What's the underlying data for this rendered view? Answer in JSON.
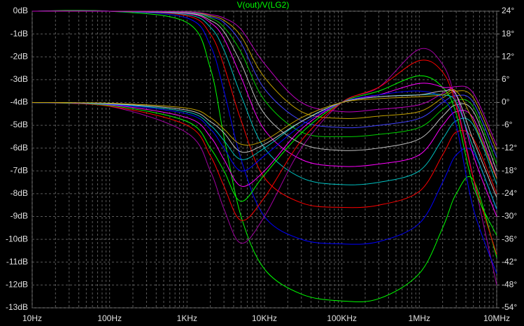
{
  "chart_data": {
    "type": "line",
    "title": "V(out)/V(LG2)",
    "log_x": true,
    "grid": true,
    "minor_grid": true,
    "background": "#000000",
    "x": [
      10,
      100,
      1000,
      2000,
      3000,
      5000,
      10000,
      30000,
      100000,
      300000,
      1000000,
      2000000,
      3000000,
      5000000,
      10000000
    ],
    "xlim": [
      10,
      10000000
    ],
    "xticks": [
      {
        "value": 10,
        "label": "10Hz"
      },
      {
        "value": 100,
        "label": "100Hz"
      },
      {
        "value": 1000,
        "label": "1KHz"
      },
      {
        "value": 10000,
        "label": "10KHz"
      },
      {
        "value": 100000,
        "label": "100KHz"
      },
      {
        "value": 1000000,
        "label": "1MHz"
      },
      {
        "value": 10000000,
        "label": "10MHz"
      }
    ],
    "ylim": [
      -13,
      0
    ],
    "yticks": [
      {
        "value": 0,
        "label": "0dB"
      },
      {
        "value": -1,
        "label": "-1dB"
      },
      {
        "value": -2,
        "label": "-2dB"
      },
      {
        "value": -3,
        "label": "-3dB"
      },
      {
        "value": -4,
        "label": "-4dB"
      },
      {
        "value": -5,
        "label": "-5dB"
      },
      {
        "value": -6,
        "label": "-6dB"
      },
      {
        "value": -7,
        "label": "-7dB"
      },
      {
        "value": -8,
        "label": "-8dB"
      },
      {
        "value": -9,
        "label": "-9dB"
      },
      {
        "value": -10,
        "label": "-10dB"
      },
      {
        "value": -11,
        "label": "-11dB"
      },
      {
        "value": -12,
        "label": "-12dB"
      },
      {
        "value": -13,
        "label": "-13dB"
      }
    ],
    "y2lim": [
      -54,
      24
    ],
    "y2ticks": [
      {
        "value": 24,
        "label": "24°"
      },
      {
        "value": 18,
        "label": "18°"
      },
      {
        "value": 12,
        "label": "12°"
      },
      {
        "value": 6,
        "label": "6°"
      },
      {
        "value": 0,
        "label": "0°"
      },
      {
        "value": -6,
        "label": "-6°"
      },
      {
        "value": -12,
        "label": "-12°"
      },
      {
        "value": -18,
        "label": "-18°"
      },
      {
        "value": -24,
        "label": "-24°"
      },
      {
        "value": -30,
        "label": "-30°"
      },
      {
        "value": -36,
        "label": "-36°"
      },
      {
        "value": -42,
        "label": "-42°"
      },
      {
        "value": -48,
        "label": "-48°"
      },
      {
        "value": -54,
        "label": "-54°"
      }
    ],
    "series": [
      {
        "color": "#00ff00",
        "values": [
          0,
          0,
          -0.5,
          -2.5,
          -5.5,
          -9,
          -11.3,
          -12.4,
          -12.7,
          -12.6,
          -11.5,
          -9.5,
          -8,
          -7.4,
          -10.8
        ]
      },
      {
        "color": "#0000ff",
        "values": [
          0,
          0,
          -0.3,
          -1.5,
          -3.5,
          -6.5,
          -9,
          -10,
          -10.2,
          -10.1,
          -9.3,
          -7.5,
          -6.3,
          -6.2,
          -8.7
        ]
      },
      {
        "color": "#ff0000",
        "values": [
          0,
          0,
          -0.2,
          -1,
          -2.4,
          -4.8,
          -7.3,
          -8.4,
          -8.6,
          -8.5,
          -7.9,
          -6.3,
          -5.3,
          -5.6,
          -8
        ]
      },
      {
        "color": "#00c0c0",
        "values": [
          0,
          0,
          -0.15,
          -0.7,
          -1.7,
          -3.7,
          -6,
          -7.3,
          -7.6,
          -7.5,
          -7,
          -5.6,
          -4.8,
          -5,
          -7.6
        ]
      },
      {
        "color": "#ff00ff",
        "values": [
          0,
          0,
          -0.1,
          -0.5,
          -1.2,
          -2.9,
          -5.2,
          -6.5,
          -6.8,
          -6.7,
          -6.3,
          -5,
          -4.4,
          -4.7,
          -7.3
        ]
      },
      {
        "color": "#c0c0c0",
        "values": [
          0,
          0,
          -0.08,
          -0.4,
          -0.9,
          -2.3,
          -4.5,
          -5.8,
          -6.1,
          -6,
          -5.6,
          -4.6,
          -4.1,
          -4.4,
          -7
        ]
      },
      {
        "color": "#00d000",
        "values": [
          0,
          0,
          -0.06,
          -0.3,
          -0.7,
          -1.8,
          -3.9,
          -5.3,
          -5.5,
          -5.4,
          -5.1,
          -4.3,
          -3.9,
          -4.2,
          -6.7
        ]
      },
      {
        "color": "#4040ff",
        "values": [
          0,
          0,
          -0.05,
          -0.25,
          -0.5,
          -1.4,
          -3.4,
          -4.8,
          -5.1,
          -5,
          -4.7,
          -4,
          -3.7,
          -4,
          -6.4
        ]
      },
      {
        "color": "#c0a000",
        "values": [
          0,
          0,
          -0.04,
          -0.2,
          -0.4,
          -1.1,
          -2.9,
          -4.4,
          -4.7,
          -4.6,
          -4.4,
          -3.8,
          -3.5,
          -3.8,
          -6.1
        ]
      },
      {
        "color": "#c000c0",
        "values": [
          0,
          0,
          -0.03,
          -0.15,
          -0.3,
          -0.8,
          -2.3,
          -4,
          -4.4,
          -4.3,
          -4.1,
          -3.6,
          -3.3,
          -3.6,
          -5.9
        ]
      },
      {
        "color": "#a000a0",
        "axis": "y2",
        "values": [
          0,
          -1,
          -8,
          -18,
          -28,
          -37,
          -30,
          -12,
          0,
          4,
          14,
          10,
          0,
          -20,
          -48
        ]
      },
      {
        "color": "#ff0000",
        "axis": "y2",
        "values": [
          0,
          -1,
          -6,
          -14,
          -22,
          -31,
          -25,
          -10,
          0,
          4,
          11,
          8,
          -1,
          -20,
          -40
        ]
      },
      {
        "color": "#00ff00",
        "axis": "y2",
        "values": [
          0,
          -0.8,
          -5,
          -12,
          -18,
          -26,
          -19,
          -8,
          0,
          3,
          7,
          4,
          -3,
          -22,
          -35
        ]
      },
      {
        "color": "#ff00ff",
        "axis": "y2",
        "values": [
          0,
          -0.6,
          -4,
          -9,
          -15,
          -22,
          -18,
          -7,
          0,
          2,
          5,
          4,
          2,
          -14,
          -30
        ]
      },
      {
        "color": "#0000ff",
        "axis": "y2",
        "values": [
          0,
          -0.5,
          -3,
          -7,
          -12,
          -18,
          -14,
          -6,
          0,
          2,
          3,
          1,
          -6,
          -28,
          -45
        ]
      },
      {
        "color": "#00c0c0",
        "axis": "y2",
        "values": [
          0,
          -0.4,
          -2.5,
          -6,
          -10,
          -15,
          -12,
          -5,
          0,
          1.5,
          2,
          2,
          0,
          -12,
          -28
        ]
      },
      {
        "color": "#c0c0c0",
        "axis": "y2",
        "values": [
          0,
          -0.3,
          -2,
          -5,
          -8,
          -13,
          -11,
          -5,
          0,
          1.5,
          2,
          3,
          2,
          -10,
          -25
        ]
      },
      {
        "color": "#c0a000",
        "axis": "y2",
        "values": [
          0,
          -0.2,
          -1.5,
          -4,
          -7,
          -11,
          -10,
          -4,
          0,
          1,
          1.5,
          2,
          3,
          -5,
          -20
        ]
      }
    ]
  }
}
